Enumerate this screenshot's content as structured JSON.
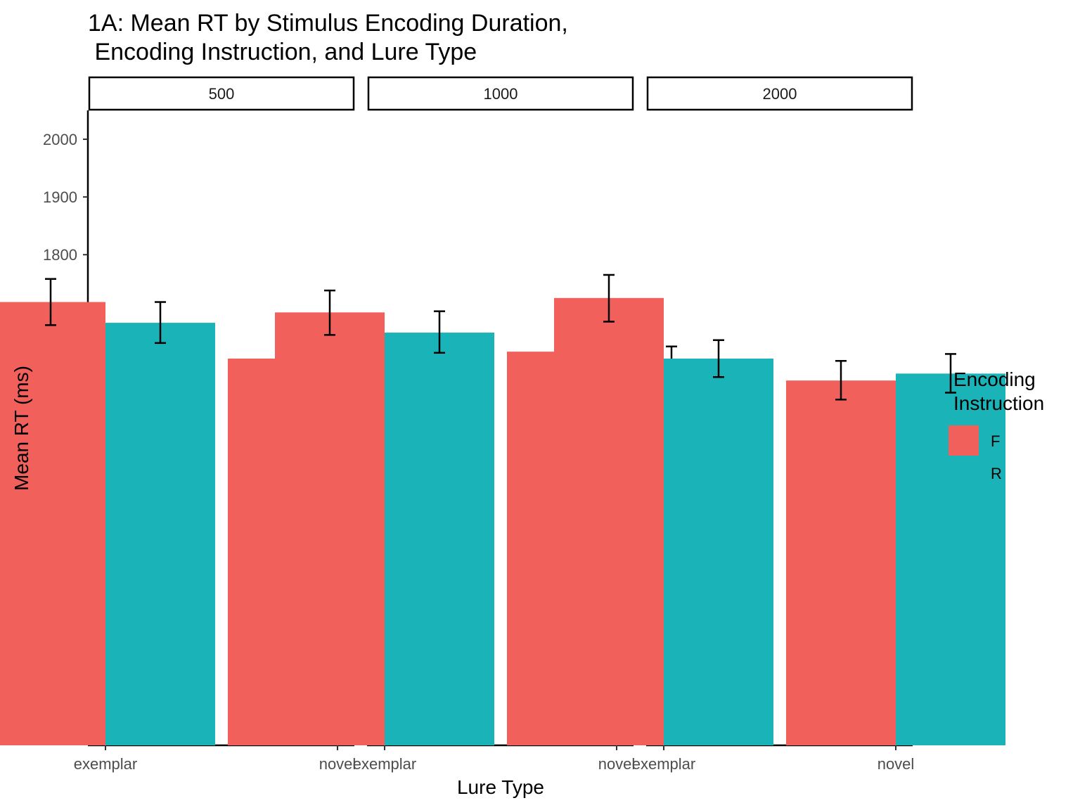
{
  "chart_data": {
    "type": "bar",
    "title_lines": [
      "1A: Mean RT by Stimulus Encoding Duration,",
      " Encoding Instruction, and Lure Type"
    ],
    "xlabel": "Lure Type",
    "ylabel": "Mean RT (ms)",
    "ylim": [
      950,
      2050
    ],
    "yticks": [
      1000,
      1100,
      1200,
      1300,
      1400,
      1500,
      1600,
      1700,
      1800,
      1900,
      2000
    ],
    "categories": [
      "exemplar",
      "novel"
    ],
    "facets": [
      {
        "label": "500",
        "series": [
          {
            "name": "F",
            "values": [
              1718,
              1620
            ],
            "error_low": [
              1678,
              1583
            ],
            "error_high": [
              1758,
              1658
            ]
          },
          {
            "name": "R",
            "values": [
              1682,
              1583
            ],
            "error_low": [
              1647,
              1550
            ],
            "error_high": [
              1718,
              1617
            ]
          }
        ]
      },
      {
        "label": "1000",
        "series": [
          {
            "name": "F",
            "values": [
              1700,
              1632
            ],
            "error_low": [
              1661,
              1599
            ],
            "error_high": [
              1738,
              1666
            ]
          },
          {
            "name": "R",
            "values": [
              1665,
              1606
            ],
            "error_low": [
              1630,
              1573
            ],
            "error_high": [
              1702,
              1641
            ]
          }
        ]
      },
      {
        "label": "2000",
        "series": [
          {
            "name": "F",
            "values": [
              1725,
              1582
            ],
            "error_low": [
              1684,
              1549
            ],
            "error_high": [
              1765,
              1616
            ]
          },
          {
            "name": "R",
            "values": [
              1620,
              1594
            ],
            "error_low": [
              1588,
              1561
            ],
            "error_high": [
              1652,
              1628
            ]
          }
        ]
      }
    ],
    "legend": {
      "title_lines": [
        "Encoding",
        "Instruction"
      ],
      "placement": "right",
      "entries": [
        {
          "name": "F",
          "color": "#F8766D"
        },
        {
          "name": "R",
          "color": "#00BFC4"
        }
      ]
    },
    "colors": {
      "F": "#F2605C",
      "R": "#1AB3B8"
    },
    "grid": false
  }
}
